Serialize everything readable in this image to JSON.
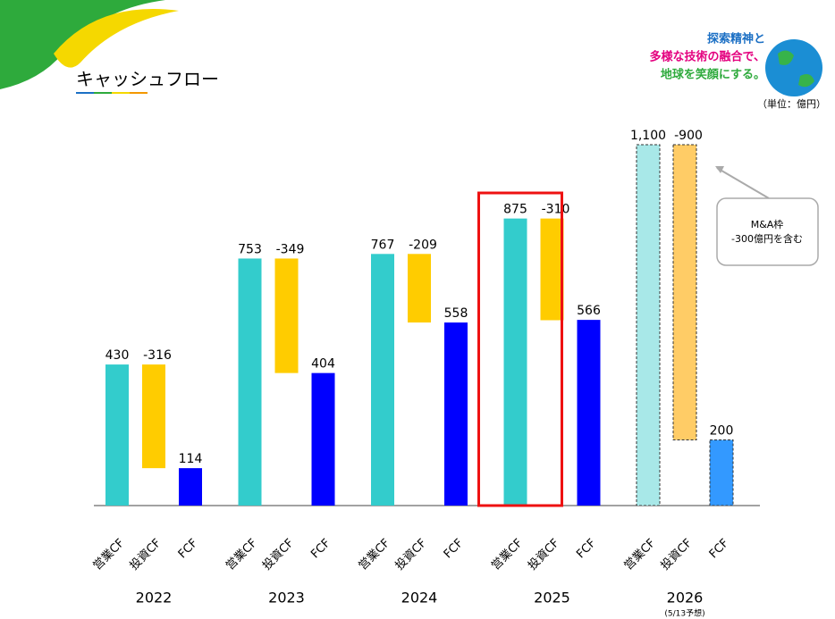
{
  "header": {
    "title": "キャッシュフロー",
    "slogan": [
      "探索精神と",
      "多様な技術の融合で、",
      "地球を笑顔にする。"
    ],
    "unit": "（単位：億円）"
  },
  "chart_data": {
    "type": "floating-bar",
    "categories": [
      "2022",
      "2023",
      "2024",
      "2025",
      "2026"
    ],
    "category_notes": [
      null,
      null,
      null,
      null,
      "(5/13予想)"
    ],
    "series": [
      {
        "name": "営業CF",
        "color": "#33cccc",
        "forecast_color": "#a8e8e8",
        "values": [
          430,
          753,
          767,
          875,
          1100
        ],
        "value_labels": [
          "430",
          "753",
          "767",
          "875",
          "1,100"
        ]
      },
      {
        "name": "投資CF",
        "color": "#ffcc00",
        "forecast_color": "#ffcc66",
        "values": [
          -316,
          -349,
          -209,
          -310,
          -900
        ]
      },
      {
        "name": "FCF",
        "color": "#0000ff",
        "forecast_color": "#3399ff",
        "values": [
          114,
          404,
          558,
          566,
          200
        ]
      }
    ],
    "ylim": [
      0,
      1100
    ],
    "highlight_index": 3,
    "annotation": [
      "M&A枠",
      "-300億円を含む"
    ]
  }
}
